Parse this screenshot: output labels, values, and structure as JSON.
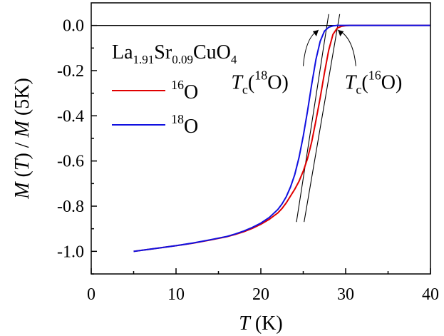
{
  "chart_data": {
    "type": "line",
    "xlabel": {
      "italic": "T",
      "rest": " (K)"
    },
    "ylabel": {
      "m1": "M",
      "t1": "T",
      "m2": "M",
      "rest": "5K"
    },
    "xlim": [
      0,
      40
    ],
    "ylim": [
      -1.1,
      0.1
    ],
    "xticks": [
      "0",
      "10",
      "20",
      "30",
      "40"
    ],
    "yticks": [
      "0.0",
      "-0.2",
      "-0.4",
      "-0.6",
      "-0.8",
      "-1.0"
    ],
    "zero_line": 0,
    "compound": {
      "La": "La",
      "La_sub": "1.91",
      "Sr": "Sr",
      "Sr_sub": "0.09",
      "Cu": "CuO",
      "O_sub": "4"
    },
    "series": [
      {
        "name": "16O",
        "iso_mass": "16",
        "iso_sym": "O",
        "color": "#e00000",
        "x": [
          5,
          8,
          10,
          12,
          14,
          16,
          17,
          18,
          19,
          20,
          21,
          22,
          22.5,
          23,
          23.5,
          24,
          24.5,
          25,
          25.5,
          26,
          26.5,
          27,
          27.5,
          28,
          28.5,
          29,
          29.5,
          30,
          30.5,
          31,
          32,
          34,
          36,
          38,
          40
        ],
        "values": [
          -1.0,
          -0.985,
          -0.975,
          -0.964,
          -0.95,
          -0.935,
          -0.925,
          -0.913,
          -0.898,
          -0.88,
          -0.858,
          -0.83,
          -0.81,
          -0.785,
          -0.755,
          -0.725,
          -0.69,
          -0.645,
          -0.59,
          -0.515,
          -0.42,
          -0.32,
          -0.21,
          -0.11,
          -0.04,
          -0.012,
          -0.004,
          -0.001,
          0.0,
          0.0,
          0.0,
          0.0,
          0.0,
          0.0,
          0.0
        ]
      },
      {
        "name": "18O",
        "iso_mass": "18",
        "iso_sym": "O",
        "color": "#1010e0",
        "x": [
          5,
          8,
          10,
          12,
          14,
          16,
          17,
          18,
          19,
          20,
          21,
          22,
          22.5,
          23,
          23.5,
          24,
          24.5,
          25,
          25.5,
          26,
          26.5,
          27,
          27.5,
          28,
          28.5,
          29,
          29.5,
          30,
          31,
          32,
          34,
          36,
          38,
          40
        ],
        "values": [
          -1.0,
          -0.985,
          -0.975,
          -0.963,
          -0.949,
          -0.934,
          -0.923,
          -0.91,
          -0.894,
          -0.875,
          -0.85,
          -0.815,
          -0.79,
          -0.758,
          -0.715,
          -0.66,
          -0.585,
          -0.49,
          -0.38,
          -0.26,
          -0.15,
          -0.07,
          -0.025,
          -0.008,
          -0.002,
          0.0,
          0.0,
          0.0,
          0.0,
          0.0,
          0.0,
          0.0,
          0.0,
          0.0
        ]
      }
    ],
    "tangent_lines": [
      {
        "name": "18O",
        "x": [
          24.2,
          28.0
        ],
        "values": [
          -0.87,
          0.05
        ]
      },
      {
        "name": "16O",
        "x": [
          25.1,
          29.3
        ],
        "values": [
          -0.87,
          0.05
        ]
      }
    ],
    "annotations": [
      {
        "name": "tc-18O",
        "T": "T",
        "sub": "c",
        "sup": "18",
        "sym": "O",
        "tc_value": 26.9,
        "text_x": 16.5,
        "text_y": -0.28,
        "curve_from": [
          25.0,
          -0.18
        ],
        "curve_to": [
          26.8,
          -0.02
        ]
      },
      {
        "name": "tc-16O",
        "T": "T",
        "sub": "c",
        "sup": "16",
        "sym": "O",
        "tc_value": 28.1,
        "text_x": 29.9,
        "text_y": -0.28,
        "curve_from": [
          31.2,
          -0.18
        ],
        "curve_to": [
          29.1,
          -0.02
        ]
      }
    ]
  }
}
